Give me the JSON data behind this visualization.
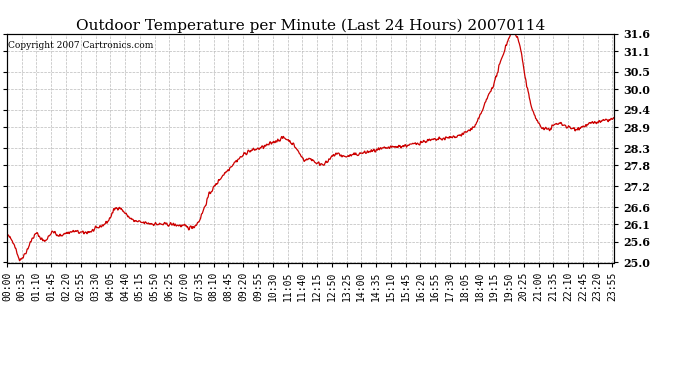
{
  "title": "Outdoor Temperature per Minute (Last 24 Hours) 20070114",
  "copyright": "Copyright 2007 Cartronics.com",
  "line_color": "#cc0000",
  "background_color": "#ffffff",
  "plot_bg_color": "#ffffff",
  "grid_color": "#bbbbbb",
  "ylim": [
    25.0,
    31.6
  ],
  "yticks": [
    25.0,
    25.6,
    26.1,
    26.6,
    27.2,
    27.8,
    28.3,
    28.9,
    29.4,
    30.0,
    30.5,
    31.1,
    31.6
  ],
  "title_fontsize": 11,
  "tick_fontsize": 7,
  "copyright_fontsize": 6.5,
  "line_width": 0.9,
  "xtick_step": 35,
  "total_minutes": 1440
}
